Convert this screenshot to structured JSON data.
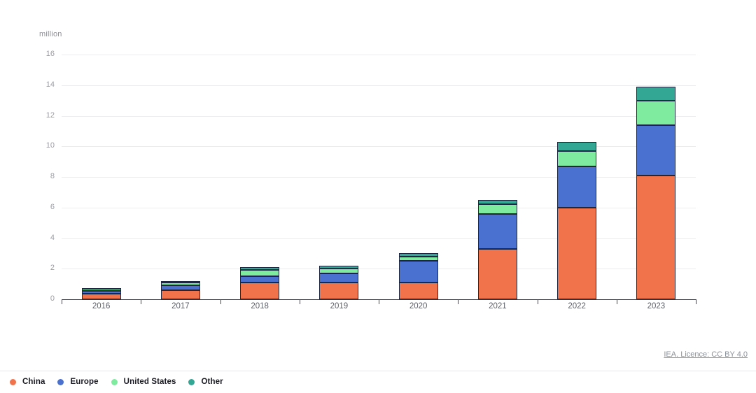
{
  "meta": {
    "attribution": "IEA. Licence: CC BY 4.0"
  },
  "legend": [
    {
      "label": "China",
      "color": "#F1734C"
    },
    {
      "label": "Europe",
      "color": "#4A71D0"
    },
    {
      "label": "United States",
      "color": "#7FEB9F"
    },
    {
      "label": "Other",
      "color": "#33A794"
    }
  ],
  "chart_data": {
    "type": "bar",
    "stacked": true,
    "title": "",
    "xlabel": "",
    "ylabel": "million",
    "categories": [
      "2016",
      "2017",
      "2018",
      "2019",
      "2020",
      "2021",
      "2022",
      "2023"
    ],
    "series": [
      {
        "name": "China",
        "color": "#F1734C",
        "values": [
          0.35,
          0.6,
          1.1,
          1.1,
          1.1,
          3.3,
          6.0,
          8.1
        ]
      },
      {
        "name": "Europe",
        "color": "#4A71D0",
        "values": [
          0.2,
          0.3,
          0.4,
          0.6,
          1.4,
          2.3,
          2.7,
          3.3
        ]
      },
      {
        "name": "United States",
        "color": "#7FEB9F",
        "values": [
          0.15,
          0.2,
          0.4,
          0.3,
          0.3,
          0.6,
          1.0,
          1.6
        ]
      },
      {
        "name": "Other",
        "color": "#33A794",
        "values": [
          0.05,
          0.1,
          0.2,
          0.2,
          0.2,
          0.3,
          0.6,
          0.9
        ]
      }
    ],
    "totals": [
      0.75,
      1.2,
      2.1,
      2.2,
      3.0,
      6.5,
      10.3,
      13.9
    ],
    "ylim": [
      0,
      16
    ],
    "ytick_step": 2,
    "yticks": [
      0,
      2,
      4,
      6,
      8,
      10,
      12,
      14,
      16
    ],
    "grid": true,
    "legend_position": "bottom-left"
  }
}
